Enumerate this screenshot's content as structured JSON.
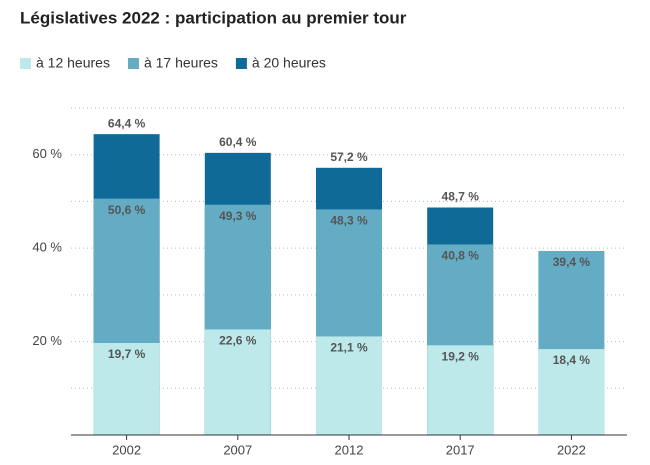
{
  "chart_data": {
    "type": "bar",
    "overlap": true,
    "title": "Législatives 2022 : participation au premier tour",
    "categories": [
      "2002",
      "2007",
      "2012",
      "2017",
      "2022"
    ],
    "series": [
      {
        "name": "à 12 heures",
        "color": "#bde9ea",
        "values": [
          19.7,
          22.6,
          21.1,
          19.2,
          18.4
        ],
        "value_labels": [
          "19,7 %",
          "22,6 %",
          "21,1 %",
          "19,2 %",
          "18,4 %"
        ]
      },
      {
        "name": "à 17 heures",
        "color": "#64abc4",
        "values": [
          50.6,
          49.3,
          48.3,
          40.8,
          39.4
        ],
        "value_labels": [
          "50,6 %",
          "49,3 %",
          "48,3 %",
          "40,8 %",
          "39,4 %"
        ]
      },
      {
        "name": "à 20 heures",
        "color": "#0f6a98",
        "values": [
          64.4,
          60.4,
          57.2,
          48.7,
          null
        ],
        "value_labels": [
          "64,4 %",
          "60,4 %",
          "57,2 %",
          "48,7 %",
          null
        ]
      }
    ],
    "ylim": [
      0,
      70
    ],
    "yticks": [
      {
        "value": 20,
        "label": "20 %"
      },
      {
        "value": 40,
        "label": "40 %"
      },
      {
        "value": 60,
        "label": "60 %"
      }
    ],
    "minor_yticks": [
      10,
      30,
      50,
      70
    ],
    "grid": true
  }
}
